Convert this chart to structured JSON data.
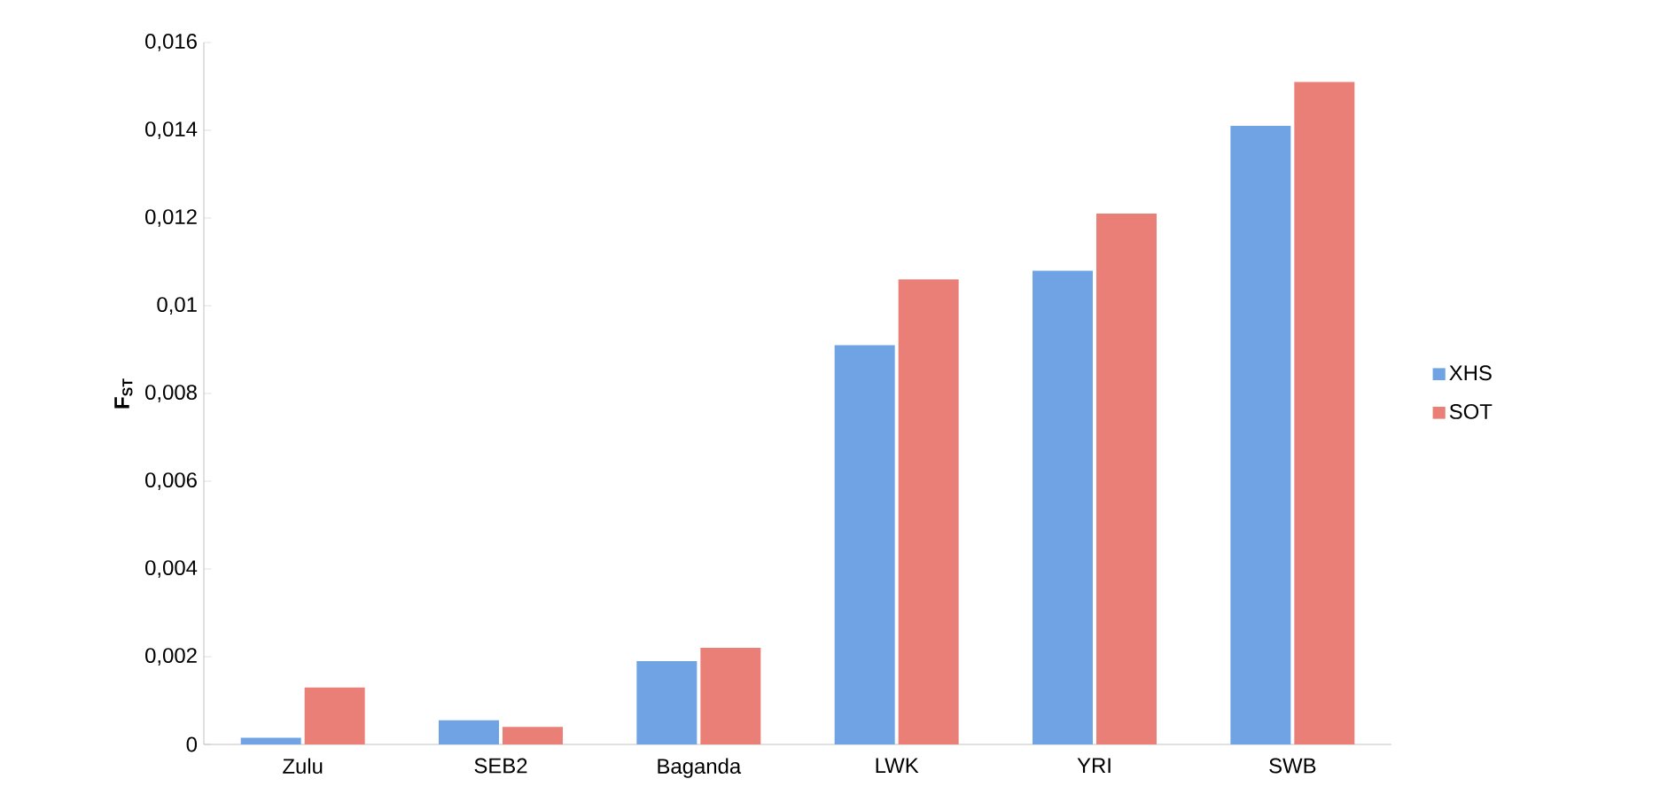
{
  "chart_data": {
    "type": "bar",
    "ylabel": "F$_{ST}$",
    "categories": [
      "Zulu",
      "SEB2",
      "Baganda",
      "LWK",
      "YRI",
      "SWB"
    ],
    "series": [
      {
        "name": "XHS",
        "color": "#6fa3e3",
        "values": [
          0.00015,
          0.00055,
          0.0019,
          0.0091,
          0.0108,
          0.0141
        ]
      },
      {
        "name": "SOT",
        "color": "#ea7f78",
        "values": [
          0.0013,
          0.0004,
          0.0022,
          0.0106,
          0.0121,
          0.0151
        ]
      }
    ],
    "ylim": [
      0,
      0.016
    ],
    "yticks": [
      0,
      {
        "value": 0.002,
        "label": "0,002"
      },
      {
        "value": 0.004,
        "label": "0,004"
      },
      {
        "value": 0.006,
        "label": "0,006"
      },
      {
        "value": 0.008,
        "label": "0,008"
      },
      {
        "value": 0.01,
        "label": "0,01"
      },
      {
        "value": 0.012,
        "label": "0,012"
      },
      {
        "value": 0.014,
        "label": "0,014"
      },
      {
        "value": 0.016,
        "label": "0,016"
      }
    ],
    "grid": false,
    "legend": "right"
  }
}
